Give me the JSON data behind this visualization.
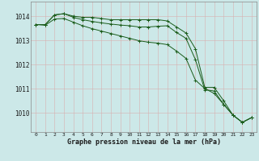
{
  "bg_color": "#cce8e8",
  "grid_color": "#b0d0d0",
  "line_color": "#1a5c1a",
  "marker_color": "#1a5c1a",
  "xlabel": "Graphe pression niveau de la mer (hPa)",
  "xlabel_ticks": [
    0,
    1,
    2,
    3,
    4,
    5,
    6,
    7,
    8,
    9,
    10,
    11,
    12,
    13,
    14,
    15,
    16,
    17,
    18,
    19,
    20,
    21,
    22,
    23
  ],
  "yticks": [
    1010,
    1011,
    1012,
    1013,
    1014
  ],
  "ylim": [
    1009.2,
    1014.6
  ],
  "xlim": [
    -0.5,
    23.5
  ],
  "series": [
    [
      1013.65,
      1013.65,
      1014.05,
      1014.1,
      1014.0,
      1013.95,
      1013.95,
      1013.9,
      1013.85,
      1013.85,
      1013.85,
      1013.85,
      1013.85,
      1013.85,
      1013.8,
      1013.55,
      1013.3,
      1012.65,
      1011.05,
      1011.05,
      1010.5,
      1009.9,
      1009.6,
      1009.8
    ],
    [
      1013.65,
      1013.65,
      1014.05,
      1014.1,
      1013.95,
      1013.85,
      1013.78,
      1013.72,
      1013.67,
      1013.63,
      1013.6,
      1013.55,
      1013.55,
      1013.58,
      1013.6,
      1013.32,
      1013.08,
      1012.2,
      1010.95,
      1010.9,
      1010.35,
      1009.9,
      1009.6,
      1009.8
    ],
    [
      1013.65,
      1013.62,
      1013.88,
      1013.9,
      1013.75,
      1013.6,
      1013.48,
      1013.38,
      1013.28,
      1013.18,
      1013.08,
      1012.98,
      1012.92,
      1012.88,
      1012.82,
      1012.55,
      1012.25,
      1011.35,
      1011.0,
      1010.8,
      1010.35,
      1009.9,
      1009.6,
      1009.8
    ]
  ]
}
